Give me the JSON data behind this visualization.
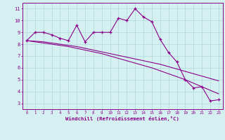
{
  "xlabel": "Windchill (Refroidissement éolien,°C)",
  "x_values": [
    0,
    1,
    2,
    3,
    4,
    5,
    6,
    7,
    8,
    9,
    10,
    11,
    12,
    13,
    14,
    15,
    16,
    17,
    18,
    19,
    20,
    21,
    22,
    23
  ],
  "y_main": [
    8.3,
    9.0,
    9.0,
    8.8,
    8.5,
    8.3,
    9.6,
    8.2,
    9.0,
    9.0,
    9.0,
    10.2,
    10.0,
    11.0,
    10.3,
    9.9,
    8.4,
    7.3,
    6.5,
    5.0,
    4.3,
    4.4,
    3.2,
    3.3
  ],
  "y_trend1": [
    8.3,
    8.25,
    8.2,
    8.1,
    8.0,
    7.9,
    7.8,
    7.65,
    7.5,
    7.35,
    7.2,
    7.05,
    6.9,
    6.75,
    6.6,
    6.45,
    6.3,
    6.1,
    5.9,
    5.7,
    5.5,
    5.3,
    5.1,
    4.9
  ],
  "y_trend2": [
    8.3,
    8.2,
    8.1,
    8.0,
    7.9,
    7.8,
    7.65,
    7.5,
    7.35,
    7.2,
    7.0,
    6.8,
    6.6,
    6.4,
    6.2,
    6.0,
    5.75,
    5.5,
    5.25,
    5.0,
    4.7,
    4.4,
    4.1,
    3.8
  ],
  "line_color": "#8B008B",
  "bg_color": "#d4f0f0",
  "grid_color": "#aed8d8",
  "ylim": [
    2.5,
    11.5
  ],
  "xlim": [
    -0.5,
    23.5
  ],
  "yticks": [
    3,
    4,
    5,
    6,
    7,
    8,
    9,
    10,
    11
  ],
  "xticks": [
    0,
    1,
    2,
    3,
    4,
    5,
    6,
    7,
    8,
    9,
    10,
    11,
    12,
    13,
    14,
    15,
    16,
    17,
    18,
    19,
    20,
    21,
    22,
    23
  ]
}
